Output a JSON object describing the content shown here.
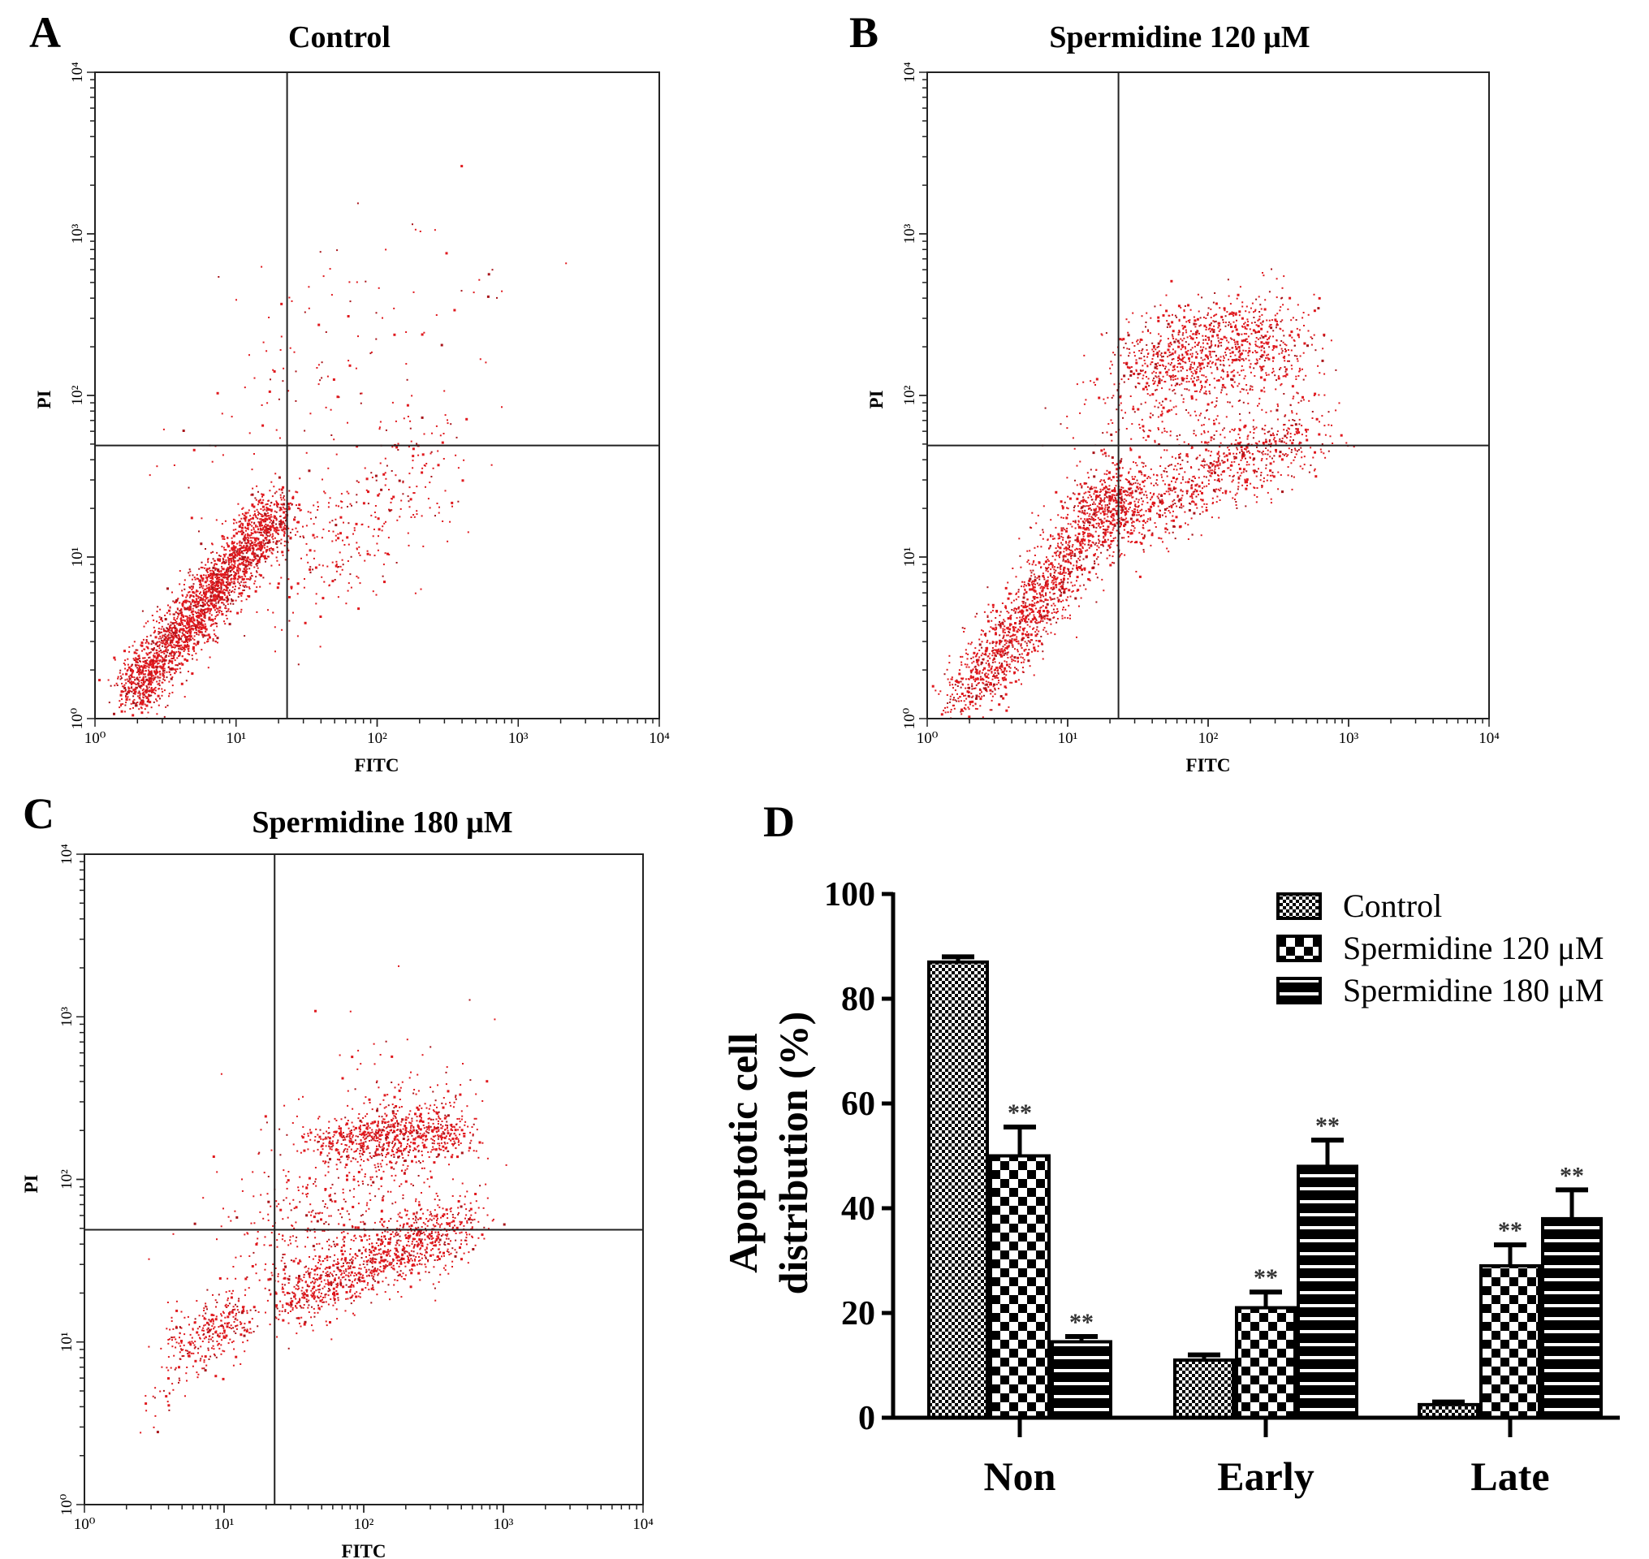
{
  "panels": [
    {
      "letter": "A",
      "title": "Control",
      "type": "scatter",
      "xlabel": "FITC",
      "ylabel": "PI",
      "xscale": "log",
      "yscale": "log",
      "xlim": [
        1,
        10000
      ],
      "ylim": [
        1,
        10000
      ],
      "xticks": [
        "10⁰",
        "10¹",
        "10²",
        "10³",
        "10⁴"
      ],
      "yticks": [
        "10⁰",
        "10¹",
        "10²",
        "10³",
        "10⁴"
      ],
      "quadrant_gate": {
        "FITC": 23,
        "PI": 49
      },
      "point_color": "#e0191e"
    },
    {
      "letter": "B",
      "title": "Spermidine 120 μM",
      "type": "scatter",
      "xlabel": "FITC",
      "ylabel": "PI",
      "xscale": "log",
      "yscale": "log",
      "xlim": [
        1,
        10000
      ],
      "ylim": [
        1,
        10000
      ],
      "xticks": [
        "10⁰",
        "10¹",
        "10²",
        "10³",
        "10⁴"
      ],
      "yticks": [
        "10⁰",
        "10¹",
        "10²",
        "10³",
        "10⁴"
      ],
      "quadrant_gate": {
        "FITC": 23,
        "PI": 49
      },
      "point_color": "#e0191e"
    },
    {
      "letter": "C",
      "title": "Spermidine 180 μM",
      "type": "scatter",
      "xlabel": "FITC",
      "ylabel": "PI",
      "xscale": "log",
      "yscale": "log",
      "xlim": [
        1,
        10000
      ],
      "ylim": [
        1,
        10000
      ],
      "xticks": [
        "10⁰",
        "10¹",
        "10²",
        "10³",
        "10⁴"
      ],
      "yticks": [
        "10⁰",
        "10¹",
        "10²",
        "10³",
        "10⁴"
      ],
      "quadrant_gate": {
        "FITC": 23,
        "PI": 49
      },
      "point_color": "#e0191e"
    }
  ],
  "chart_data": {
    "letter": "D",
    "type": "bar",
    "ylabel_lines": [
      "Apoptotic cell",
      "distribution (%)"
    ],
    "ylim": [
      0,
      100
    ],
    "yticks": [
      "0",
      "20",
      "40",
      "60",
      "80",
      "100"
    ],
    "categories": [
      "Non",
      "Early",
      "Late"
    ],
    "legend_placement": "top-right",
    "series": [
      {
        "name": "Control",
        "pattern": "fine-checker",
        "values": [
          87,
          11,
          2.5
        ],
        "errors": [
          1,
          1,
          0.5
        ],
        "significance": [
          "",
          "",
          ""
        ]
      },
      {
        "name": "Spermidine 120 μM",
        "pattern": "coarse-checker",
        "values": [
          50,
          21,
          29
        ],
        "errors": [
          5.5,
          3,
          4
        ],
        "significance": [
          "**",
          "**",
          "**"
        ]
      },
      {
        "name": "Spermidine 180 μM",
        "pattern": "horizontal-stripes",
        "values": [
          14.5,
          48,
          38
        ],
        "errors": [
          1,
          5,
          5.5
        ],
        "significance": [
          "**",
          "**",
          "**"
        ]
      }
    ]
  }
}
